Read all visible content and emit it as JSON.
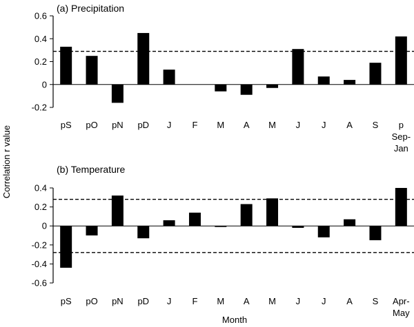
{
  "shared_ylabel": "Correlation r value",
  "shared_xlabel": "Month",
  "chart_data": [
    {
      "type": "bar",
      "title": "(a) Precipitation",
      "categories": [
        "pS",
        "pO",
        "pN",
        "pD",
        "J",
        "F",
        "M",
        "A",
        "M",
        "J",
        "J",
        "A",
        "S",
        "p Sep-Jan"
      ],
      "category_lines": [
        [
          "pS"
        ],
        [
          "pO"
        ],
        [
          "pN"
        ],
        [
          "pD"
        ],
        [
          "J"
        ],
        [
          "F"
        ],
        [
          "M"
        ],
        [
          "A"
        ],
        [
          "M"
        ],
        [
          "J"
        ],
        [
          "J"
        ],
        [
          "A"
        ],
        [
          "S"
        ],
        [
          "p",
          "Sep-",
          "Jan"
        ]
      ],
      "values": [
        0.33,
        0.25,
        -0.16,
        0.45,
        0.13,
        0.0,
        -0.06,
        -0.09,
        -0.03,
        0.31,
        0.07,
        0.04,
        0.19,
        0.42
      ],
      "ylim": [
        -0.2,
        0.6
      ],
      "yticks": [
        -0.2,
        0,
        0.2,
        0.4,
        0.6
      ],
      "ytick_labels": [
        "-0.2",
        "0",
        "0.2",
        "0.4",
        "0.6"
      ],
      "significance_lines": [
        0.29
      ],
      "xlabel": "",
      "ylabel": "Correlation r value"
    },
    {
      "type": "bar",
      "title": "(b) Temperature",
      "categories": [
        "pS",
        "pO",
        "pN",
        "pD",
        "J",
        "F",
        "M",
        "A",
        "M",
        "J",
        "J",
        "A",
        "S",
        "Apr-May"
      ],
      "category_lines": [
        [
          "pS"
        ],
        [
          "pO"
        ],
        [
          "pN"
        ],
        [
          "pD"
        ],
        [
          "J"
        ],
        [
          "F"
        ],
        [
          "M"
        ],
        [
          "A"
        ],
        [
          "M"
        ],
        [
          "J"
        ],
        [
          "J"
        ],
        [
          "A"
        ],
        [
          "S"
        ],
        [
          "Apr-",
          "May"
        ]
      ],
      "values": [
        -0.44,
        -0.1,
        0.32,
        -0.13,
        0.06,
        0.14,
        -0.01,
        0.23,
        0.29,
        -0.02,
        -0.12,
        0.07,
        -0.15,
        0.4
      ],
      "ylim": [
        -0.6,
        0.4
      ],
      "yticks": [
        -0.6,
        -0.4,
        -0.2,
        0,
        0.2,
        0.4
      ],
      "ytick_labels": [
        "-0.6",
        "-0.4",
        "-0.2",
        "0",
        "0.2",
        "0.4"
      ],
      "significance_lines": [
        0.28,
        -0.28
      ],
      "xlabel": "Month",
      "ylabel": "Correlation r value"
    }
  ]
}
